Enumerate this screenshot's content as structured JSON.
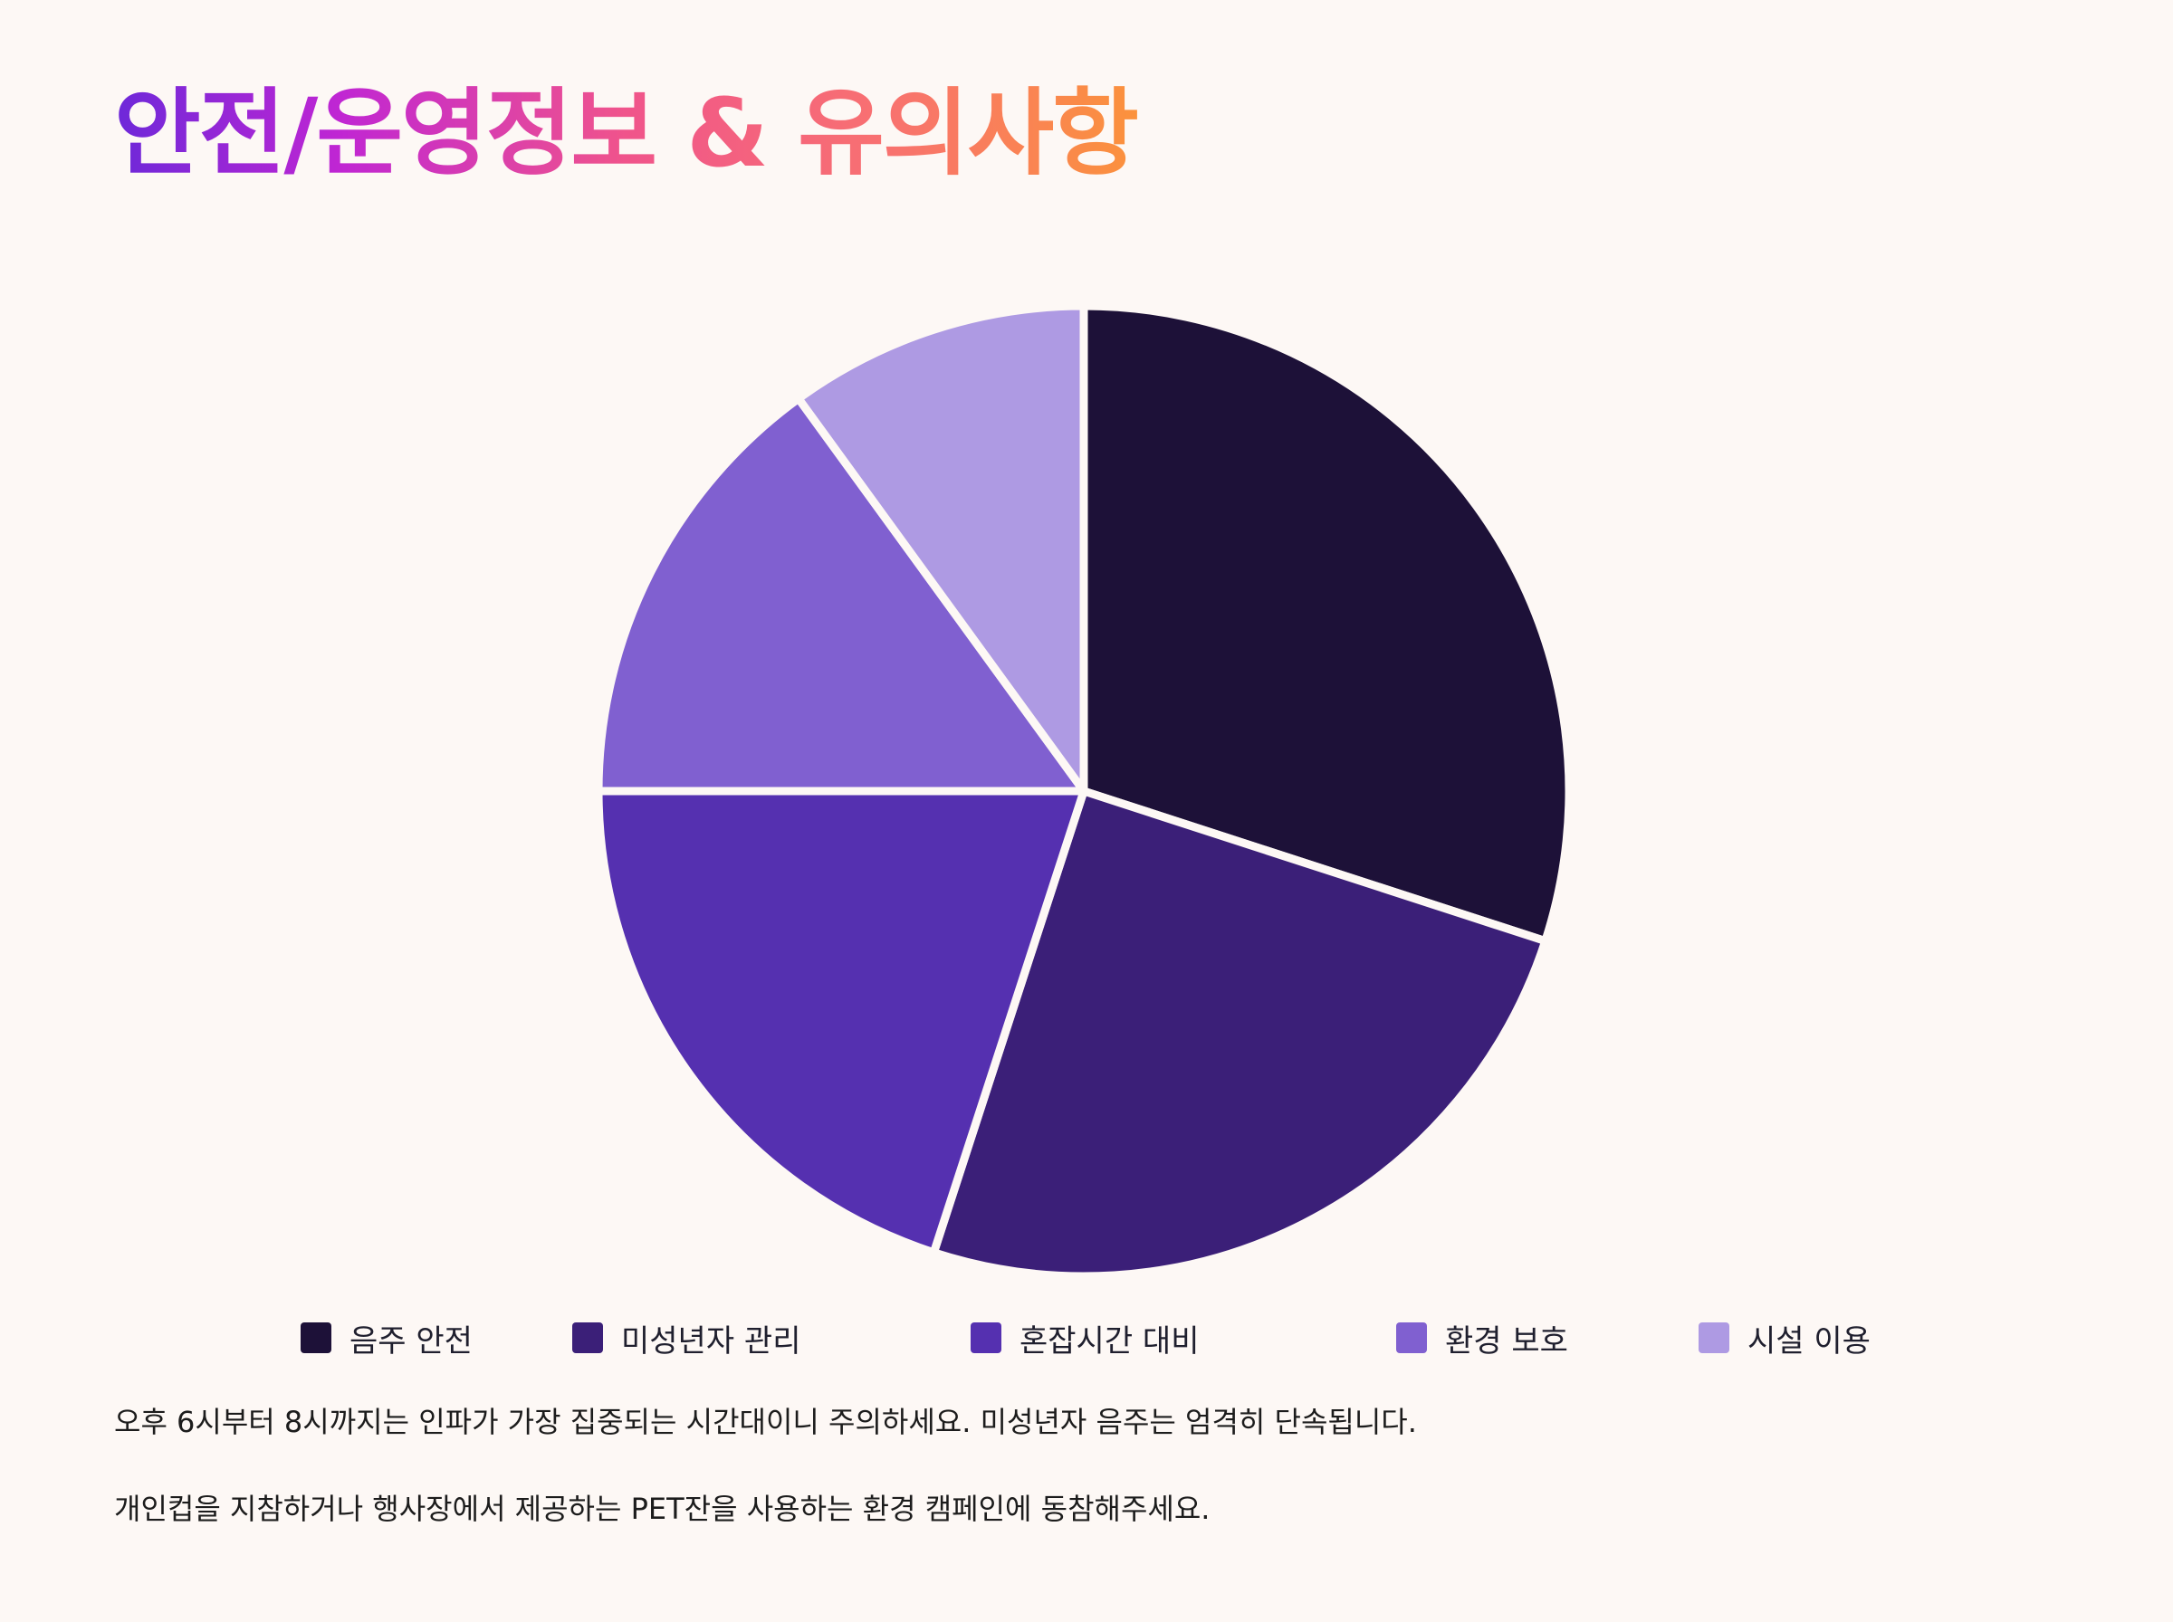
{
  "title": "안전/운영정보 & 유의사항",
  "chart_data": {
    "type": "pie",
    "title": "",
    "categories": [
      "음주 안전",
      "미성년자 관리",
      "혼잡시간 대비",
      "환경 보호",
      "시설 이용"
    ],
    "values": [
      30,
      25,
      20,
      15,
      10
    ],
    "colors": [
      "#1d1138",
      "#3b1f78",
      "#5530b0",
      "#8060d0",
      "#ae9ae3"
    ],
    "start_angle_deg": 0,
    "direction": "clockwise",
    "legend_position": "bottom"
  },
  "notes": [
    "오후 6시부터 8시까지는 인파가 가장 집중되는 시간대이니 주의하세요. 미성년자 음주는 엄격히 단속됩니다.",
    "개인컵을 지참하거나 행사장에서 제공하는 PET잔을 사용하는 환경 캠페인에 동참해주세요."
  ]
}
